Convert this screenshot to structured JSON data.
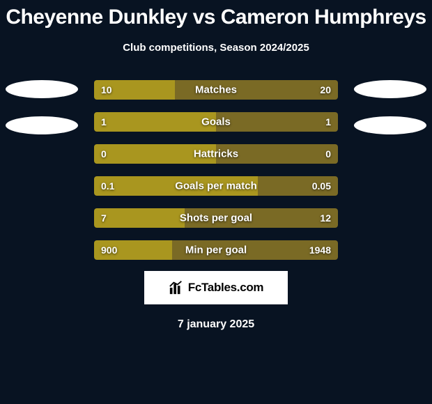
{
  "title": "Cheyenne Dunkley vs Cameron Humphreys",
  "subtitle": "Club competitions, Season 2024/2025",
  "date": "7 january 2025",
  "logo_text": "FcTables.com",
  "colors": {
    "bg": "#081322",
    "bar_left": "#a9961f",
    "bar_right": "#7a6a25",
    "avatar": "#ffffff",
    "logo_bg": "#ffffff",
    "logo_text": "#000000"
  },
  "bars": [
    {
      "label": "Matches",
      "l": "10",
      "r": "20",
      "lp": 33,
      "rp": 67
    },
    {
      "label": "Goals",
      "l": "1",
      "r": "1",
      "lp": 50,
      "rp": 50
    },
    {
      "label": "Hattricks",
      "l": "0",
      "r": "0",
      "lp": 50,
      "rp": 50
    },
    {
      "label": "Goals per match",
      "l": "0.1",
      "r": "0.05",
      "lp": 67,
      "rp": 33
    },
    {
      "label": "Shots per goal",
      "l": "7",
      "r": "12",
      "lp": 37,
      "rp": 63
    },
    {
      "label": "Min per goal",
      "l": "900",
      "r": "1948",
      "lp": 32,
      "rp": 68
    }
  ]
}
